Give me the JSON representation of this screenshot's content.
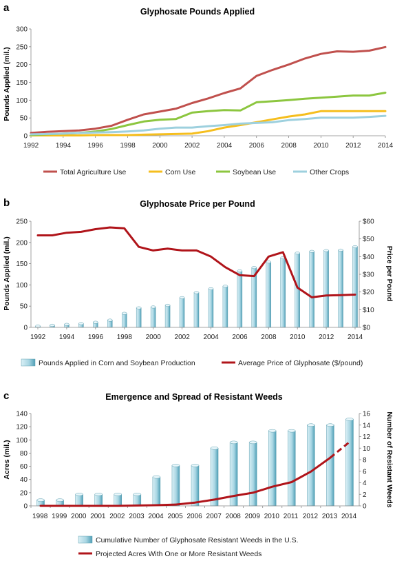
{
  "colors": {
    "total": "#C0504D",
    "corn": "#F5BE1E",
    "soy": "#8CC63F",
    "other": "#9DD0DE",
    "price_line": "#B0141A",
    "bar_light": "#D9EFF5",
    "bar_mid": "#A9D6E3",
    "bar_dark": "#4F9FB6"
  },
  "chart_data": [
    {
      "id": "a",
      "panel_letter": "a",
      "type": "line",
      "title": "Glyphosate Pounds Applied",
      "ylabel": "Pounds Applied (mil.)",
      "xlabel": "",
      "ylim": [
        0,
        300
      ],
      "yticks": [
        "0",
        "50",
        "100",
        "150",
        "200",
        "250",
        "300"
      ],
      "xlim": [
        1992,
        2014
      ],
      "xticks": [
        "1992",
        "1994",
        "1996",
        "1998",
        "2000",
        "2002",
        "2004",
        "2006",
        "2008",
        "2010",
        "2012",
        "2014"
      ],
      "x": [
        1992,
        1993,
        1994,
        1995,
        1996,
        1997,
        1998,
        1999,
        2000,
        2001,
        2002,
        2003,
        2004,
        2005,
        2006,
        2007,
        2008,
        2009,
        2010,
        2011,
        2012,
        2013,
        2014
      ],
      "series": [
        {
          "name": "Total Agriculture Use",
          "color_key": "total",
          "values": [
            8,
            11,
            13,
            15,
            20,
            28,
            45,
            60,
            68,
            76,
            92,
            105,
            120,
            133,
            168,
            185,
            200,
            217,
            230,
            237,
            236,
            239,
            249
          ]
        },
        {
          "name": "Corn Use",
          "color_key": "corn",
          "values": [
            1,
            1,
            1,
            1,
            2,
            2,
            2,
            3,
            4,
            5,
            6,
            13,
            23,
            30,
            38,
            46,
            54,
            60,
            69,
            69,
            69,
            69,
            69
          ]
        },
        {
          "name": "Soybean Use",
          "color_key": "soy",
          "values": [
            2,
            4,
            6,
            8,
            12,
            19,
            30,
            40,
            45,
            47,
            65,
            69,
            72,
            71,
            94,
            97,
            100,
            104,
            107,
            110,
            113,
            113,
            121
          ]
        },
        {
          "name": "Other Crops",
          "color_key": "other",
          "values": [
            4,
            5,
            6,
            8,
            9,
            10,
            12,
            15,
            20,
            23,
            23,
            27,
            30,
            34,
            36,
            38,
            44,
            47,
            51,
            51,
            51,
            53,
            56
          ]
        }
      ],
      "legend_placement": "bottom"
    },
    {
      "id": "b",
      "panel_letter": "b",
      "type": "bar",
      "title": "Glyphosate Price per Pound",
      "ylabel": "Pounds Applied (mil.)",
      "y2label": "Price per Pound",
      "xlabel": "",
      "ylim": [
        0,
        250
      ],
      "yticks": [
        "0",
        "50",
        "100",
        "150",
        "200",
        "250"
      ],
      "y2lim": [
        0,
        60
      ],
      "y2ticks": [
        "$0",
        "$10",
        "$20",
        "$30",
        "$40",
        "$50",
        "$60"
      ],
      "xlim": [
        1992,
        2014
      ],
      "xticks": [
        "1992",
        "1994",
        "1996",
        "1998",
        "2000",
        "2002",
        "2004",
        "2006",
        "2008",
        "2010",
        "2012",
        "2014"
      ],
      "x": [
        1992,
        1993,
        1994,
        1995,
        1996,
        1997,
        1998,
        1999,
        2000,
        2001,
        2002,
        2003,
        2004,
        2005,
        2006,
        2007,
        2008,
        2009,
        2010,
        2011,
        2012,
        2013,
        2014
      ],
      "series": [
        {
          "name": "Pounds Applied in Corn and Soybean Production",
          "type": "bar",
          "axis": "left",
          "values": [
            3,
            5,
            7,
            9,
            12,
            17,
            33,
            46,
            48,
            52,
            70,
            82,
            91,
            97,
            133,
            141,
            154,
            164,
            175,
            179,
            181,
            182,
            190
          ]
        },
        {
          "name": "Average Price of Glyphosate ($/pound)",
          "type": "line",
          "axis": "right",
          "values": [
            52,
            52,
            53.5,
            54,
            55.5,
            56.5,
            56,
            45.5,
            43.5,
            44.5,
            43.5,
            43.5,
            40,
            34,
            29.5,
            29,
            40,
            42.5,
            22.5,
            17,
            18,
            18.2,
            18.5
          ]
        }
      ],
      "legend_placement": "bottom"
    },
    {
      "id": "c",
      "panel_letter": "c",
      "type": "bar",
      "title": "Emergence and Spread of Resistant Weeds",
      "ylabel": "Acres (mil.)",
      "y2label": "Number of Resistant Weeds",
      "xlabel": "",
      "ylim": [
        0,
        140
      ],
      "yticks": [
        "0",
        "20",
        "40",
        "60",
        "80",
        "100",
        "120",
        "140"
      ],
      "y2lim": [
        0,
        16
      ],
      "y2ticks": [
        "0",
        "2",
        "4",
        "6",
        "8",
        "10",
        "12",
        "14",
        "16"
      ],
      "categories": [
        "1998",
        "1999",
        "2000",
        "2001",
        "2002",
        "2003",
        "2004",
        "2005",
        "2006",
        "2007",
        "2008",
        "2009",
        "2010",
        "2011",
        "2012",
        "2013",
        "2014"
      ],
      "series": [
        {
          "name": "Cumulative Number of Glyphosate Resistant Weeds in the U.S.",
          "type": "bar",
          "axis": "right",
          "values": [
            1,
            1,
            2,
            2,
            2,
            2,
            5,
            7,
            7,
            10,
            11,
            11,
            13,
            13,
            14,
            14,
            15
          ]
        },
        {
          "name": "Projected Acres With One or More Resistant Weeds",
          "type": "line",
          "axis": "left",
          "values": [
            0,
            0,
            0,
            0,
            0,
            0.5,
            1,
            2,
            5,
            9.5,
            15,
            20,
            29,
            36,
            52,
            73,
            97
          ],
          "dashed_from_index": 15
        }
      ],
      "legend_placement": "bottom"
    }
  ]
}
